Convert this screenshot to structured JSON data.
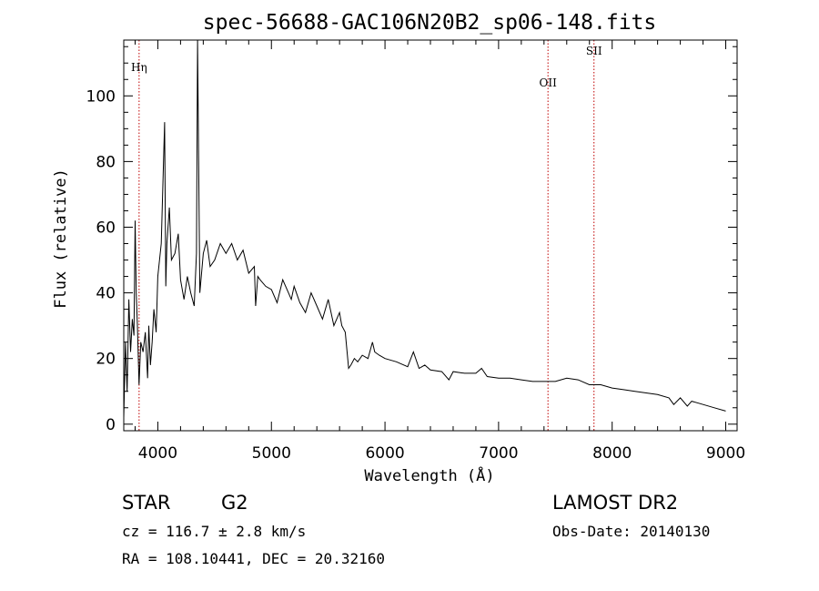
{
  "chart_data": {
    "type": "line",
    "title": "spec-56688-GAC106N20B2_sp06-148.fits",
    "xlabel": "Wavelength (Å)",
    "ylabel": "Flux (relative)",
    "xlim": [
      3700,
      9100
    ],
    "ylim": [
      -2,
      117
    ],
    "xticks": [
      4000,
      5000,
      6000,
      7000,
      8000,
      9000
    ],
    "yticks": [
      0,
      20,
      40,
      60,
      80,
      100
    ],
    "grid": false,
    "series": [
      {
        "color": "#000000",
        "x": [
          3700,
          3715,
          3730,
          3745,
          3760,
          3775,
          3790,
          3800,
          3810,
          3820,
          3835,
          3850,
          3870,
          3890,
          3910,
          3920,
          3935,
          3950,
          3965,
          3985,
          4000,
          4030,
          4060,
          4070,
          4080,
          4101,
          4120,
          4150,
          4180,
          4200,
          4230,
          4260,
          4290,
          4320,
          4340,
          4350,
          4370,
          4400,
          4430,
          4460,
          4500,
          4550,
          4600,
          4650,
          4700,
          4750,
          4800,
          4850,
          4861,
          4880,
          4900,
          4950,
          5000,
          5050,
          5100,
          5150,
          5175,
          5200,
          5250,
          5300,
          5350,
          5400,
          5450,
          5500,
          5550,
          5600,
          5620,
          5650,
          5680,
          5700,
          5730,
          5760,
          5800,
          5850,
          5890,
          5910,
          5950,
          6000,
          6100,
          6200,
          6250,
          6300,
          6350,
          6400,
          6500,
          6563,
          6600,
          6700,
          6800,
          6850,
          6900,
          7000,
          7100,
          7200,
          7300,
          7400,
          7500,
          7600,
          7700,
          7800,
          7900,
          8000,
          8100,
          8200,
          8300,
          8400,
          8500,
          8542,
          8600,
          8662,
          8700,
          8800,
          8900,
          9000
        ],
        "values": [
          2,
          25,
          10,
          38,
          22,
          32,
          27,
          62,
          40,
          30,
          12,
          25,
          22,
          28,
          14,
          30,
          18,
          25,
          35,
          28,
          45,
          55,
          92,
          42,
          55,
          66,
          50,
          52,
          58,
          44,
          38,
          45,
          40,
          36,
          52,
          117,
          40,
          52,
          56,
          48,
          50,
          55,
          52,
          55,
          50,
          53,
          46,
          48,
          36,
          45,
          44,
          42,
          41,
          37,
          44,
          40,
          38,
          42,
          37,
          34,
          40,
          36,
          32,
          38,
          30,
          34,
          30,
          28,
          17,
          18,
          20,
          19,
          21,
          20,
          25,
          22,
          21,
          20,
          19,
          17.5,
          22,
          17,
          18,
          16.5,
          16,
          13.5,
          16,
          15.5,
          15.5,
          17,
          14.5,
          14,
          14,
          13.5,
          13,
          13,
          13,
          14,
          13.5,
          12,
          12,
          11,
          10.5,
          10,
          9.5,
          9,
          8,
          6,
          8,
          5.5,
          7,
          6,
          5,
          4
        ]
      }
    ],
    "lines": [
      {
        "label": "Hη",
        "x": 3835
      },
      {
        "label": "OII",
        "x": 7435
      },
      {
        "label": "SII",
        "x": 7840
      }
    ]
  },
  "info": {
    "class": "STAR",
    "subclass": "G2",
    "survey": "LAMOST DR2",
    "cz": "cz = 116.7 ± 2.8 km/s",
    "obs_date": "Obs-Date: 20140130",
    "coords": "RA = 108.10441, DEC =  20.32160"
  }
}
